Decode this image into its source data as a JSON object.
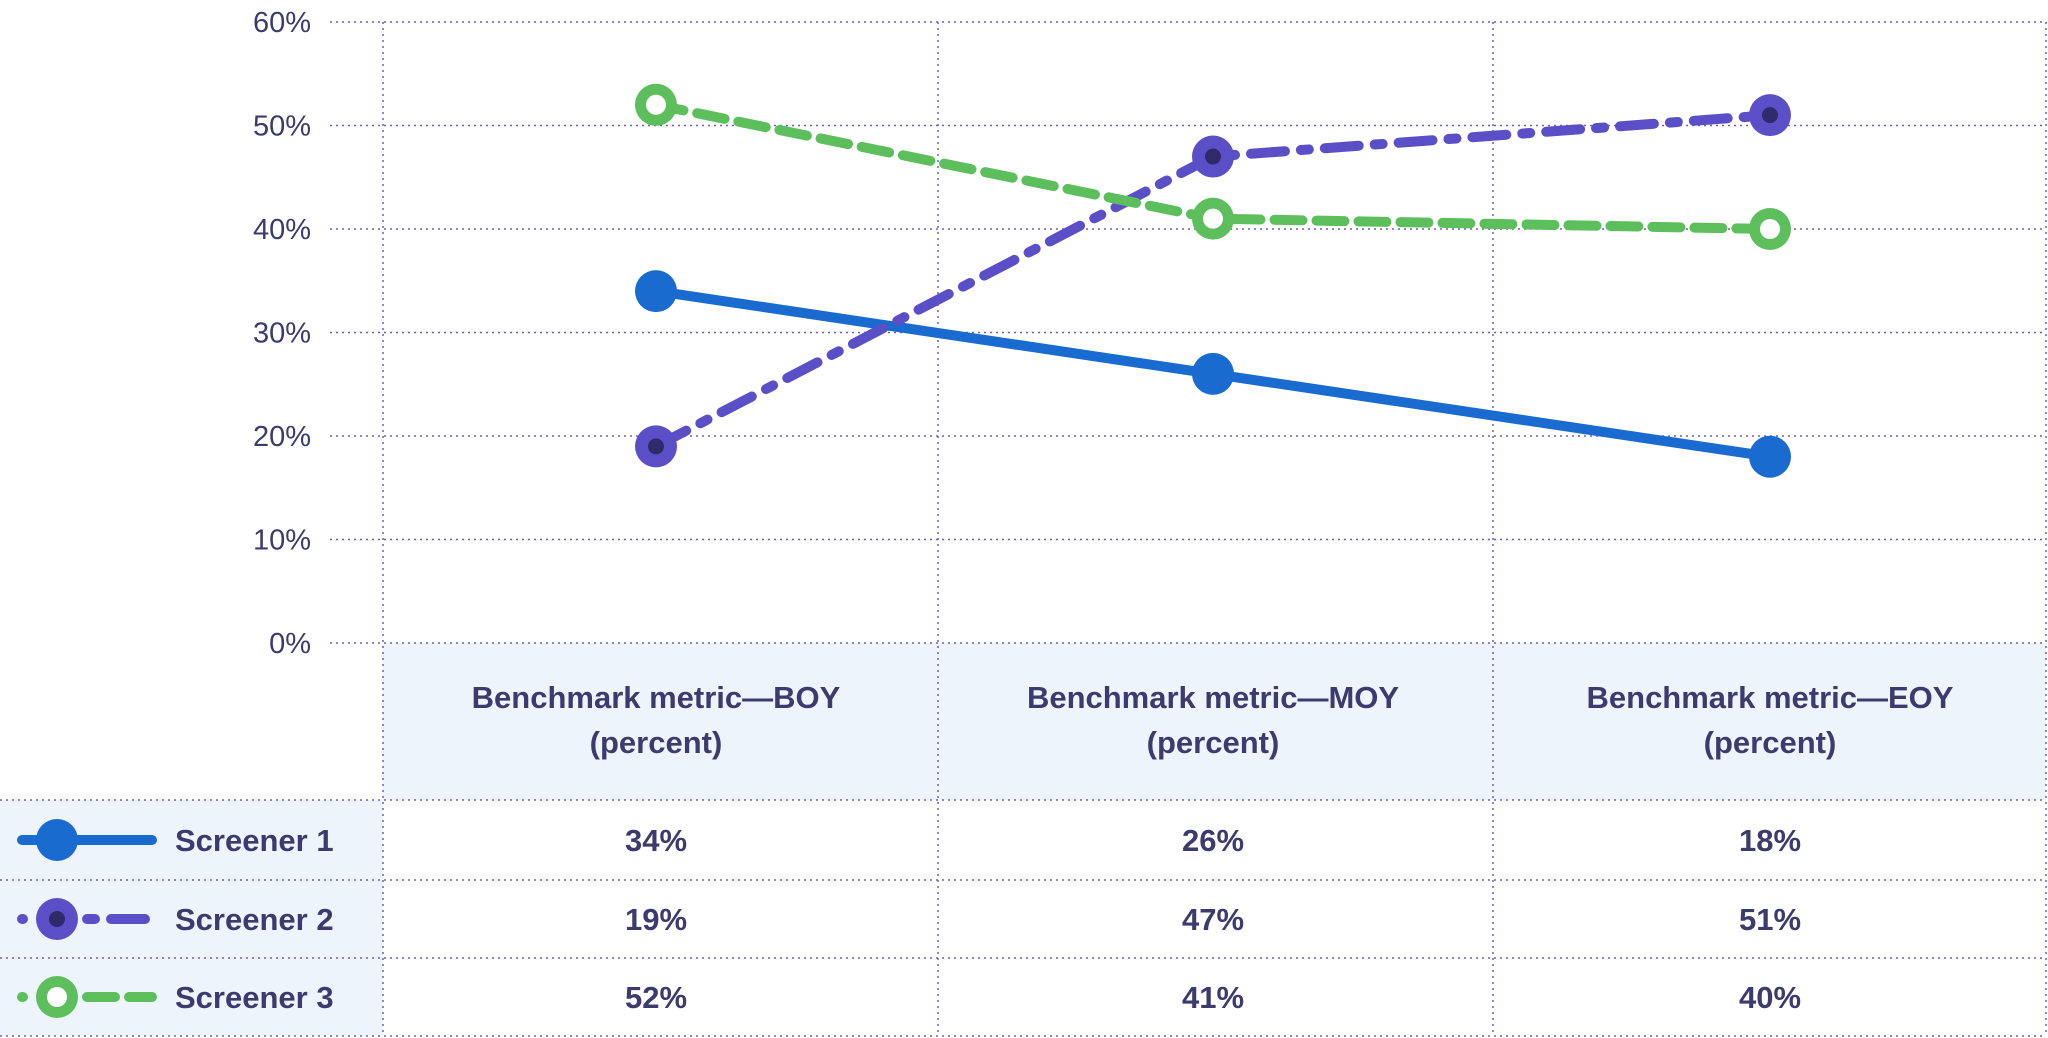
{
  "chart_data": {
    "type": "line",
    "categories": [
      "Benchmark metric—BOY (percent)",
      "Benchmark metric—MOY (percent)",
      "Benchmark metric—EOY (percent)"
    ],
    "category_lines": [
      [
        "Benchmark metric—BOY",
        "(percent)"
      ],
      [
        "Benchmark metric—MOY",
        "(percent)"
      ],
      [
        "Benchmark metric—EOY",
        "(percent)"
      ]
    ],
    "series": [
      {
        "name": "Screener 1",
        "values": [
          34,
          26,
          18
        ],
        "labels": [
          "34%",
          "26%",
          "18%"
        ],
        "color": "#1a6bd0",
        "style": "solid",
        "marker": "filled"
      },
      {
        "name": "Screener 2",
        "values": [
          19,
          47,
          51
        ],
        "labels": [
          "19%",
          "47%",
          "51%"
        ],
        "color": "#5b4fc8",
        "style": "dashdot",
        "marker": "dot"
      },
      {
        "name": "Screener 3",
        "values": [
          52,
          41,
          40
        ],
        "labels": [
          "52%",
          "41%",
          "40%"
        ],
        "color": "#5cbf5c",
        "style": "dashed",
        "marker": "hollow"
      }
    ],
    "y_ticks": [
      "0%",
      "10%",
      "20%",
      "30%",
      "40%",
      "50%",
      "60%"
    ],
    "ylim": [
      0,
      60
    ],
    "grid": true,
    "legend": "table-left",
    "title": "",
    "xlabel": "",
    "ylabel": ""
  }
}
